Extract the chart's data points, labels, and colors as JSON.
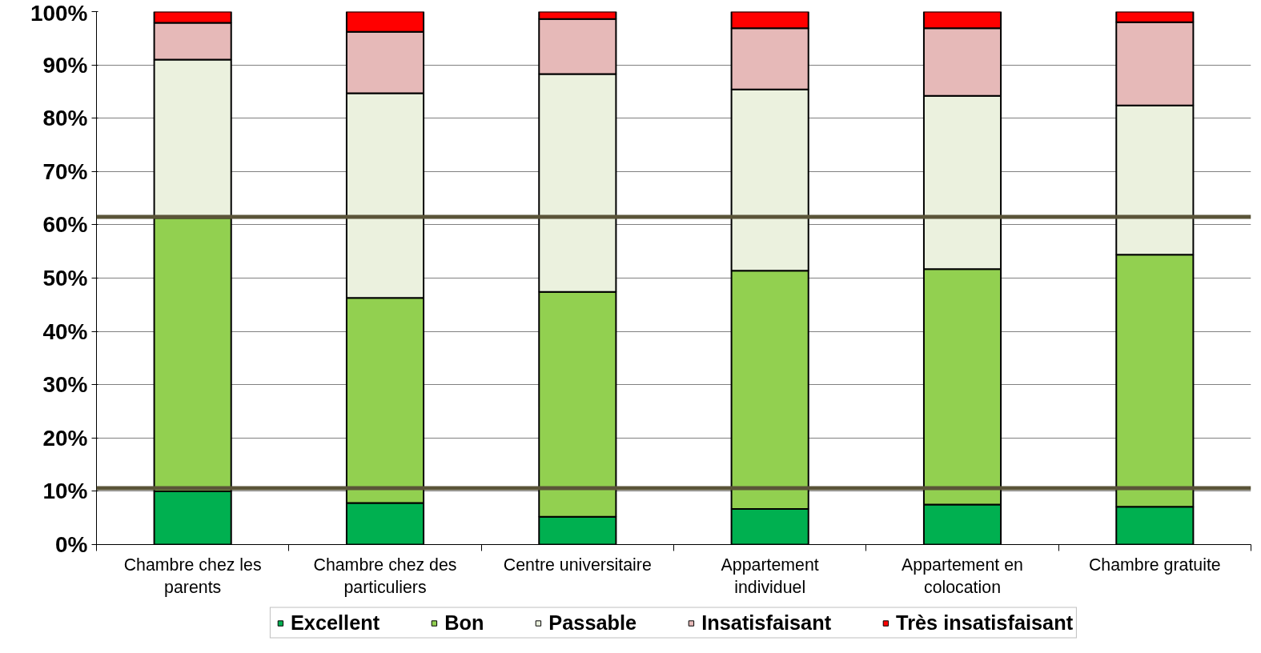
{
  "chart_data": {
    "type": "bar",
    "stacked": true,
    "categories": [
      "Chambre chez les parents",
      "Chambre chez des particuliers",
      "Centre universitaire",
      "Appartement individuel",
      "Appartement en colocation",
      "Chambre gratuite"
    ],
    "series": [
      {
        "name": "Excellent",
        "color": "#00b050",
        "values": [
          10.0,
          7.8,
          5.2,
          6.7,
          7.5,
          7.1
        ]
      },
      {
        "name": "Bon",
        "color": "#92d050",
        "values": [
          51.3,
          38.5,
          42.2,
          44.7,
          44.2,
          47.3
        ]
      },
      {
        "name": "Passable",
        "color": "#ebf1de",
        "values": [
          29.7,
          38.4,
          40.9,
          34.0,
          32.5,
          28.0
        ]
      },
      {
        "name": "Insatisfaisant",
        "color": "#e6b9b8",
        "values": [
          6.9,
          11.5,
          10.3,
          11.5,
          12.7,
          15.6
        ]
      },
      {
        "name": "Très insatisfaisant",
        "color": "#ff0000",
        "values": [
          2.1,
          3.8,
          1.4,
          3.1,
          3.1,
          2.0
        ]
      }
    ],
    "ylim": [
      0,
      100
    ],
    "yticks": [
      {
        "value": 0,
        "label": "0%"
      },
      {
        "value": 10,
        "label": "10%"
      },
      {
        "value": 20,
        "label": "20%"
      },
      {
        "value": 30,
        "label": "30%"
      },
      {
        "value": 40,
        "label": "40%"
      },
      {
        "value": 50,
        "label": "50%"
      },
      {
        "value": 60,
        "label": "60%"
      },
      {
        "value": 70,
        "label": "70%"
      },
      {
        "value": 80,
        "label": "80%"
      },
      {
        "value": 90,
        "label": "90%"
      },
      {
        "value": 100,
        "label": "100%"
      }
    ],
    "grid": "y",
    "legend": "bottom",
    "ref_lines": [
      {
        "axis": "y",
        "value": 61.5,
        "color": "#5a5438"
      },
      {
        "axis": "y",
        "value": 10.6,
        "color": "#5a5438"
      }
    ]
  }
}
